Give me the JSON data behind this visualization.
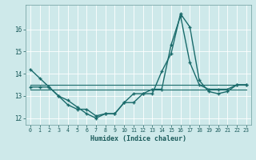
{
  "xlabel": "Humidex (Indice chaleur)",
  "background_color": "#cee9ea",
  "grid_color": "#b8d8da",
  "line_color": "#1a6b6b",
  "xlim": [
    -0.5,
    23.5
  ],
  "ylim": [
    11.7,
    17.1
  ],
  "yticks": [
    12,
    13,
    14,
    15,
    16
  ],
  "xticks": [
    0,
    1,
    2,
    3,
    4,
    5,
    6,
    7,
    8,
    9,
    10,
    11,
    12,
    13,
    14,
    15,
    16,
    17,
    18,
    19,
    20,
    21,
    22,
    23
  ],
  "series": [
    {
      "y": [
        14.2,
        13.8,
        13.4,
        13.0,
        12.8,
        12.5,
        12.2,
        12.0,
        12.2,
        12.2,
        12.7,
        12.7,
        13.1,
        13.1,
        14.1,
        14.9,
        16.7,
        16.1,
        13.7,
        13.2,
        13.1,
        13.2,
        13.5,
        13.5
      ],
      "marker": true,
      "linewidth": 1.0
    },
    {
      "y": [
        13.5,
        13.5,
        13.5,
        13.5,
        13.5,
        13.5,
        13.5,
        13.5,
        13.5,
        13.5,
        13.5,
        13.5,
        13.5,
        13.5,
        13.5,
        13.5,
        13.5,
        13.5,
        13.5,
        13.5,
        13.5,
        13.5,
        13.5,
        13.5
      ],
      "marker": false,
      "linewidth": 0.8
    },
    {
      "y": [
        13.4,
        13.4,
        13.4,
        13.0,
        12.6,
        12.4,
        12.4,
        12.1,
        12.2,
        12.2,
        12.7,
        13.1,
        13.1,
        13.3,
        13.3,
        15.3,
        16.6,
        14.5,
        13.5,
        13.3,
        13.3,
        13.3,
        13.5,
        13.5
      ],
      "marker": true,
      "linewidth": 1.0
    },
    {
      "y": [
        13.3,
        13.3,
        13.3,
        13.3,
        13.3,
        13.3,
        13.3,
        13.3,
        13.3,
        13.3,
        13.3,
        13.3,
        13.3,
        13.3,
        13.3,
        13.3,
        13.3,
        13.3,
        13.3,
        13.3,
        13.3,
        13.3,
        13.3,
        13.3
      ],
      "marker": false,
      "linewidth": 0.8
    }
  ]
}
